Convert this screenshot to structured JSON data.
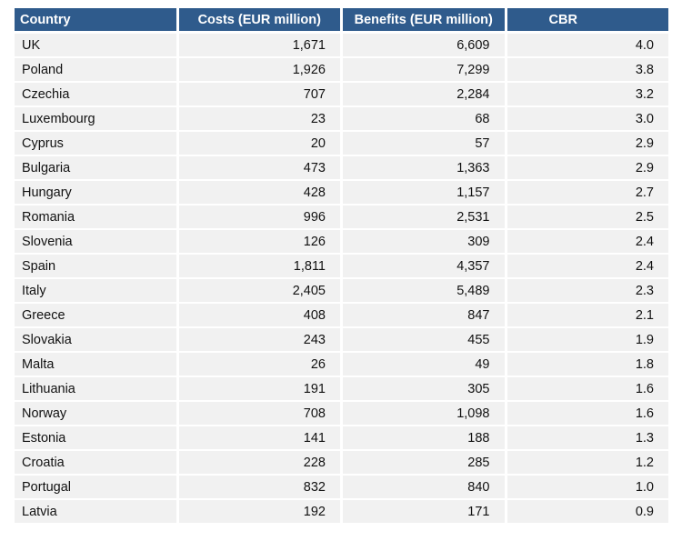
{
  "table": {
    "headers": [
      "Country",
      "Costs (EUR million)",
      "Benefits (EUR million)",
      "CBR"
    ],
    "rows": [
      [
        "UK",
        "1,671",
        "6,609",
        "4.0"
      ],
      [
        "Poland",
        "1,926",
        "7,299",
        "3.8"
      ],
      [
        "Czechia",
        "707",
        "2,284",
        "3.2"
      ],
      [
        "Luxembourg",
        "23",
        "68",
        "3.0"
      ],
      [
        "Cyprus",
        "20",
        "57",
        "2.9"
      ],
      [
        "Bulgaria",
        "473",
        "1,363",
        "2.9"
      ],
      [
        "Hungary",
        "428",
        "1,157",
        "2.7"
      ],
      [
        "Romania",
        "996",
        "2,531",
        "2.5"
      ],
      [
        "Slovenia",
        "126",
        "309",
        "2.4"
      ],
      [
        "Spain",
        "1,811",
        "4,357",
        "2.4"
      ],
      [
        "Italy",
        "2,405",
        "5,489",
        "2.3"
      ],
      [
        "Greece",
        "408",
        "847",
        "2.1"
      ],
      [
        "Slovakia",
        "243",
        "455",
        "1.9"
      ],
      [
        "Malta",
        "26",
        "49",
        "1.8"
      ],
      [
        "Lithuania",
        "191",
        "305",
        "1.6"
      ],
      [
        "Norway",
        "708",
        "1,098",
        "1.6"
      ],
      [
        "Estonia",
        "141",
        "188",
        "1.3"
      ],
      [
        "Croatia",
        "228",
        "285",
        "1.2"
      ],
      [
        "Portugal",
        "832",
        "840",
        "1.0"
      ],
      [
        "Latvia",
        "192",
        "171",
        "0.9"
      ]
    ]
  },
  "colors": {
    "header_bg": "#2f5b8c",
    "header_text": "#ffffff",
    "row_bg": "#f1f1f1"
  }
}
